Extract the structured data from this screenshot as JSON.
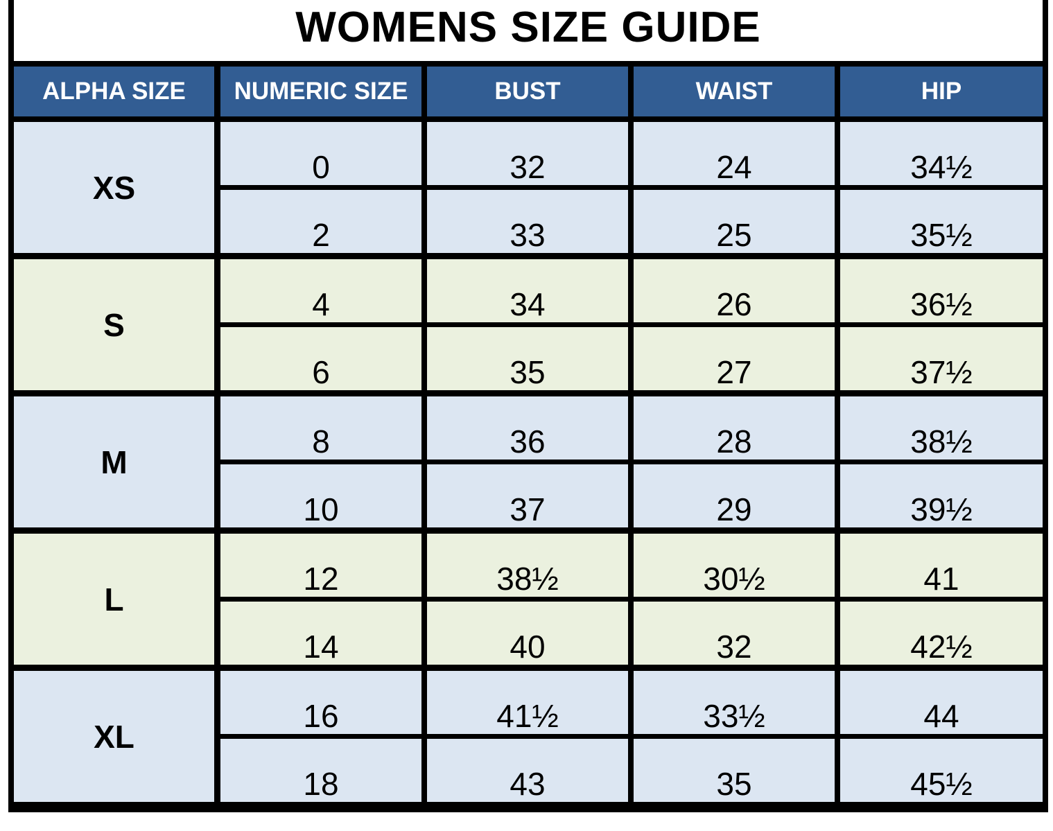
{
  "title": "WOMENS SIZE GUIDE",
  "headers": [
    "ALPHA SIZE",
    "NUMERIC SIZE",
    "BUST",
    "WAIST",
    "HIP"
  ],
  "groups": [
    {
      "alpha": "XS",
      "color": "#dce6f2",
      "rows": [
        {
          "numeric": "0",
          "bust": "32",
          "waist": "24",
          "hip": "34½"
        },
        {
          "numeric": "2",
          "bust": "33",
          "waist": "25",
          "hip": "35½"
        }
      ]
    },
    {
      "alpha": "S",
      "color": "#ebf1df",
      "rows": [
        {
          "numeric": "4",
          "bust": "34",
          "waist": "26",
          "hip": "36½"
        },
        {
          "numeric": "6",
          "bust": "35",
          "waist": "27",
          "hip": "37½"
        }
      ]
    },
    {
      "alpha": "M",
      "color": "#dce6f2",
      "rows": [
        {
          "numeric": "8",
          "bust": "36",
          "waist": "28",
          "hip": "38½"
        },
        {
          "numeric": "10",
          "bust": "37",
          "waist": "29",
          "hip": "39½"
        }
      ]
    },
    {
      "alpha": "L",
      "color": "#ebf1df",
      "rows": [
        {
          "numeric": "12",
          "bust": "38½",
          "waist": "30½",
          "hip": "41"
        },
        {
          "numeric": "14",
          "bust": "40",
          "waist": "32",
          "hip": "42½"
        }
      ]
    },
    {
      "alpha": "XL",
      "color": "#dce6f2",
      "rows": [
        {
          "numeric": "16",
          "bust": "41½",
          "waist": "33½",
          "hip": "44"
        },
        {
          "numeric": "18",
          "bust": "43",
          "waist": "35",
          "hip": "45½"
        }
      ]
    }
  ],
  "colors": {
    "header_bg": "#325d93",
    "header_text": "#ffffff",
    "grid": "#000000"
  }
}
